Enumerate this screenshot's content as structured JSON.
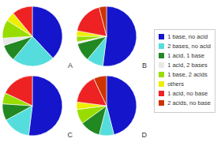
{
  "chart_data": [
    {
      "type": "pie",
      "title": "A",
      "categories": [
        "1 base, no acid",
        "2 bases, no acid",
        "1 acid, 1 base",
        "1 acid, 2 bases",
        "1 base, 2 acids",
        "others",
        "1 acid, no base",
        "2 acids, no base"
      ],
      "values": [
        38,
        23,
        9,
        4,
        10,
        5,
        11,
        0
      ],
      "colors": [
        "#1515cc",
        "#55dddd",
        "#228822",
        "#e8e8e8",
        "#99dd00",
        "#eeee00",
        "#ee2222",
        "#cc3300"
      ],
      "legend": "right"
    },
    {
      "type": "pie",
      "title": "B",
      "categories": [
        "1 base, no acid",
        "2 bases, no acid",
        "1 acid, 1 base",
        "1 acid, 2 bases",
        "1 base, 2 acids",
        "others",
        "1 acid, no base",
        "2 acids, no base"
      ],
      "values": [
        52,
        9,
        10,
        1,
        3,
        3,
        18,
        4
      ],
      "colors": [
        "#1515cc",
        "#55dddd",
        "#228822",
        "#e8e8e8",
        "#99dd00",
        "#eeee00",
        "#ee2222",
        "#cc3300"
      ],
      "legend": "right"
    },
    {
      "type": "pie",
      "title": "C",
      "categories": [
        "1 base, no acid",
        "2 bases, no acid",
        "1 acid, 1 base",
        "1 acid, 2 bases",
        "1 base, 2 acids",
        "others",
        "1 acid, no base",
        "2 acids, no base"
      ],
      "values": [
        52,
        15,
        9,
        0,
        6,
        0,
        18,
        0
      ],
      "colors": [
        "#1515cc",
        "#55dddd",
        "#228822",
        "#e8e8e8",
        "#99dd00",
        "#eeee00",
        "#ee2222",
        "#cc3300"
      ],
      "legend": "right"
    },
    {
      "type": "pie",
      "title": "D",
      "categories": [
        "1 base, no acid",
        "2 bases, no acid",
        "1 acid, 1 base",
        "1 acid, 2 bases",
        "1 base, 2 acids",
        "others",
        "1 acid, no base",
        "2 acids, no base"
      ],
      "values": [
        46,
        8,
        11,
        0,
        8,
        4,
        16,
        7
      ],
      "colors": [
        "#1515cc",
        "#55dddd",
        "#228822",
        "#e8e8e8",
        "#99dd00",
        "#eeee00",
        "#ee2222",
        "#cc3300"
      ],
      "legend": "right"
    }
  ]
}
